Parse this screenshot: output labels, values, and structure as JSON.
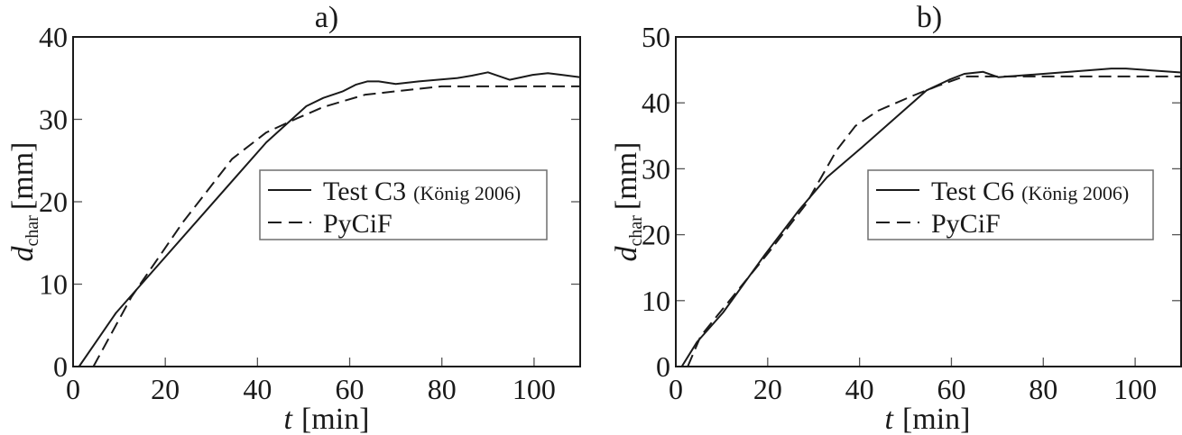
{
  "chart_data": [
    {
      "panel": "a)",
      "type": "line",
      "title": "a)",
      "xlabel": "t [min]",
      "ylabel": "d_char [mm]",
      "xlim": [
        0,
        110
      ],
      "ylim": [
        0,
        40
      ],
      "xticks": [
        0,
        20,
        40,
        60,
        80,
        100
      ],
      "yticks": [
        0,
        10,
        20,
        30,
        40
      ],
      "grid": false,
      "legend_position": "center-right",
      "legend": [
        {
          "label": "Test C3",
          "note": "(König 2006)",
          "style": "solid"
        },
        {
          "label": "PyCiF",
          "note": "",
          "style": "dashed"
        }
      ],
      "series": [
        {
          "name": "Test C3 (König 2006)",
          "style": "solid",
          "x": [
            1.3,
            9.3,
            41.9,
            50.6,
            54.3,
            58.5,
            61.3,
            63.8,
            66.3,
            70,
            75,
            83.2,
            86.5,
            90,
            94.7,
            99.7,
            103,
            106,
            110
          ],
          "y": [
            0,
            6.5,
            27.2,
            31.6,
            32.6,
            33.4,
            34.2,
            34.6,
            34.6,
            34.3,
            34.6,
            35,
            35.3,
            35.7,
            34.8,
            35.4,
            35.6,
            35.4,
            35.1
          ]
        },
        {
          "name": "PyCiF",
          "style": "dashed",
          "x": [
            4.4,
            12.6,
            23.8,
            34.5,
            41.9,
            48.5,
            54.3,
            63.4,
            71.6,
            79.9,
            110
          ],
          "y": [
            0,
            8.4,
            17.5,
            25.2,
            28.4,
            30.1,
            31.5,
            33,
            33.5,
            34,
            34
          ]
        }
      ]
    },
    {
      "panel": "b)",
      "type": "line",
      "title": "b)",
      "xlabel": "t [min]",
      "ylabel": "d_char [mm]",
      "xlim": [
        0,
        110
      ],
      "ylim": [
        0,
        50
      ],
      "xticks": [
        0,
        20,
        40,
        60,
        80,
        100
      ],
      "yticks": [
        0,
        10,
        20,
        30,
        40,
        50
      ],
      "grid": false,
      "legend_position": "center-right",
      "legend": [
        {
          "label": "Test C6",
          "note": "(König 2006)",
          "style": "solid"
        },
        {
          "label": "PyCiF",
          "note": "",
          "style": "dashed"
        }
      ],
      "series": [
        {
          "name": "Test C6 (König 2006)",
          "style": "solid",
          "x": [
            1.3,
            4.6,
            10.3,
            19.3,
            26.8,
            32.9,
            40.6,
            54.6,
            59.5,
            62.8,
            66.9,
            70.2,
            80,
            94.8,
            98,
            110
          ],
          "y": [
            0,
            3.7,
            8.2,
            16.9,
            23.7,
            28.7,
            33.3,
            41.9,
            43.5,
            44.4,
            44.7,
            43.9,
            44.4,
            45.2,
            45.2,
            44.6
          ]
        },
        {
          "name": "PyCiF",
          "style": "dashed",
          "x": [
            2.6,
            5.4,
            20.2,
            28.3,
            35,
            39.1,
            44,
            51.3,
            57.1,
            62.8,
            110
          ],
          "y": [
            0,
            4.6,
            17.3,
            24.6,
            32.8,
            36.5,
            38.8,
            41,
            42.6,
            44,
            44
          ]
        }
      ]
    }
  ],
  "panels": [
    {
      "title": "a)",
      "xlabel_var": "t",
      "xlabel_unit": "[min]",
      "ylabel_var": "d",
      "ylabel_sub": "char",
      "ylabel_unit": "[mm]",
      "legend_solid_label": "Test C3",
      "legend_solid_note": "(König 2006)",
      "legend_dashed_label": "PyCiF"
    },
    {
      "title": "b)",
      "xlabel_var": "t",
      "xlabel_unit": "[min]",
      "ylabel_var": "d",
      "ylabel_sub": "char",
      "ylabel_unit": "[mm]",
      "legend_solid_label": "Test C6",
      "legend_solid_note": "(König 2006)",
      "legend_dashed_label": "PyCiF"
    }
  ],
  "colors": {
    "line": "#1a1a1a",
    "axis": "#1a1a1a",
    "legend_border": "#6e6e6e",
    "tick": "#555555",
    "background": "#ffffff"
  }
}
